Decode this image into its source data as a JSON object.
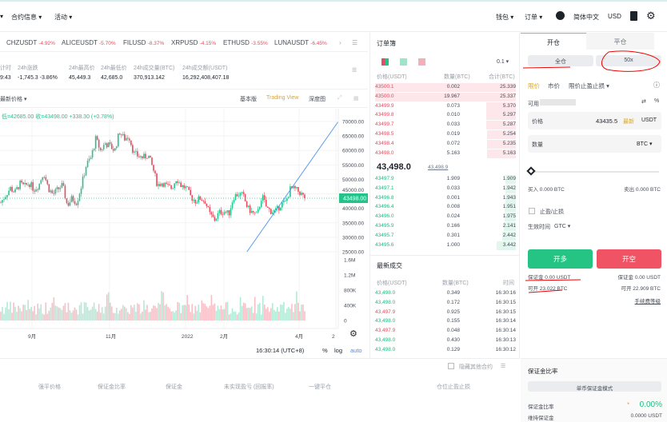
{
  "nav": {
    "left": [
      {
        "label": "合约信息 ▾"
      },
      {
        "label": "活动 ▾"
      }
    ],
    "wallet": "钱包 ▾",
    "orders": "订单 ▾",
    "language": "简体中文",
    "currency": "USD"
  },
  "ticker": [
    {
      "symbol": "CHZUSDT",
      "change": "-4.92%"
    },
    {
      "symbol": "ALICEUSDT",
      "change": "-5.70%"
    },
    {
      "symbol": "FILUSD",
      "change": "-8.37%"
    },
    {
      "symbol": "XRPUSD",
      "change": "-4.15%"
    },
    {
      "symbol": "ETHUSD",
      "change": "-3.55%"
    },
    {
      "symbol": "LUNAUSDT",
      "change": "-6.45%"
    }
  ],
  "stats": [
    {
      "label": "计时",
      "value": "9:43"
    },
    {
      "label": "24h涨跌",
      "value": "-1,745.3 -3.86%"
    },
    {
      "label": "24h最高价",
      "value": "45,449.3"
    },
    {
      "label": "24h最低价",
      "value": "42,685.0"
    },
    {
      "label": "24h成交量(BTC)",
      "value": "370,913.142"
    },
    {
      "label": "24h成交额(USDT)",
      "value": "16,292,408,407.18"
    }
  ],
  "chart_toolbar": {
    "price_type": "最新价格 ▾",
    "basic": "基本版",
    "tradingview": "Trading View",
    "depth": "深度图"
  },
  "chart": {
    "ohlc_text": "低=42685.00  收=43498.00  +338.30 (+0.78%)",
    "last_price_label": "43498.00",
    "price_ticks": [
      "70000.00",
      "65000.00",
      "60000.00",
      "55000.00",
      "50000.00",
      "45000.00",
      "40000.00",
      "35000.00",
      "30000.00",
      "25000.00"
    ],
    "volume_ticks": [
      "1.6M",
      "1.2M",
      "800K",
      "400K",
      "0"
    ],
    "time_ticks": [
      "9月",
      "11月",
      "2022",
      "2月",
      "4月",
      "2"
    ],
    "clock": "16:30:14 (UTC+8)",
    "pct": "%",
    "log": "log",
    "auto": "auto",
    "closes": [
      42000,
      44500,
      47000,
      45500,
      48500,
      47500,
      48800,
      46500,
      48000,
      52500,
      47000,
      44800,
      46500,
      48000,
      41000,
      43500,
      42000,
      48000,
      55000,
      57500,
      64000,
      60000,
      62500,
      61500,
      60000,
      66500,
      64000,
      65000,
      59000,
      58000,
      57500,
      58500,
      54000,
      48000,
      49000,
      47500,
      47000,
      50500,
      47800,
      47000,
      44000,
      42500,
      43500,
      42500,
      38000,
      36000,
      38500,
      39000,
      38000,
      44000,
      45000,
      44500,
      40000,
      38500,
      37500,
      44500,
      40000,
      39000,
      39000,
      41500,
      42000,
      46800,
      46500,
      45500,
      43498
    ],
    "trend_line": [
      {
        "date_index": 0.73,
        "price": 25000
      },
      {
        "date_index": 1.0,
        "price": 70000
      }
    ],
    "colors": {
      "up": "#26c28c",
      "down": "#e84b5d",
      "trendline": "#5a9cf0"
    }
  },
  "orderbook": {
    "title": "订单簿",
    "precision": "0.1 ▾",
    "headers": [
      "价格(USDT)",
      "数量(BTC)",
      "合计(BTC)"
    ],
    "asks": [
      [
        "43500.1",
        "0.002",
        "25.339"
      ],
      [
        "43500.0",
        "19.967",
        "25.337"
      ],
      [
        "43499.9",
        "0.073",
        "5.370"
      ],
      [
        "43499.8",
        "0.010",
        "5.297"
      ],
      [
        "43499.7",
        "0.033",
        "5.287"
      ],
      [
        "43498.5",
        "0.019",
        "5.254"
      ],
      [
        "43498.4",
        "0.072",
        "5.235"
      ],
      [
        "43498.0",
        "5.163",
        "5.163"
      ]
    ],
    "last_price": "43,498.0",
    "mark_price": "43,498.9",
    "bids": [
      [
        "43497.9",
        "1.909",
        "1.909"
      ],
      [
        "43497.1",
        "0.033",
        "1.942"
      ],
      [
        "43496.8",
        "0.001",
        "1.943"
      ],
      [
        "43496.4",
        "0.008",
        "1.951"
      ],
      [
        "43496.0",
        "0.024",
        "1.975"
      ],
      [
        "43495.9",
        "0.166",
        "2.141"
      ],
      [
        "43495.7",
        "0.301",
        "2.442"
      ],
      [
        "43495.6",
        "1.000",
        "3.442"
      ]
    ]
  },
  "trades": {
    "title": "最新成交",
    "headers": [
      "价格(USDT)",
      "数量(BTC)",
      "时间"
    ],
    "rows": [
      [
        "43,498.0",
        "0.349",
        "16:30:16",
        "buy"
      ],
      [
        "43,498.0",
        "0.172",
        "16:30:15",
        "buy"
      ],
      [
        "43,497.9",
        "0.925",
        "16:30:15",
        "sell"
      ],
      [
        "43,498.0",
        "0.155",
        "16:30:14",
        "buy"
      ],
      [
        "43,497.9",
        "0.048",
        "16:30:14",
        "sell"
      ],
      [
        "43,498.0",
        "0.430",
        "16:30:13",
        "buy"
      ],
      [
        "43,498.0",
        "0.129",
        "16:30:12",
        "buy"
      ]
    ]
  },
  "order_form": {
    "tab_open": "开仓",
    "tab_close": "平仓",
    "margin_mode": "全仓",
    "leverage": "50x",
    "types": [
      "限价",
      "市价",
      "限价止盈止损 ▾"
    ],
    "available_label": "可用",
    "price_label": "价格",
    "price_value": "43435.5",
    "latest": "最新",
    "price_unit": "USDT",
    "qty_label": "数量",
    "qty_unit": "BTC ▾",
    "slider_value": 0,
    "buy_qty": "买入 0.000 BTC",
    "sell_qty": "卖出 0.000 BTC",
    "tpsl": "止盈/止损",
    "tif_label": "生效时间",
    "tif_value": "GTC ▾",
    "long_button": "开多",
    "short_button": "开空",
    "long_margin": "保证金 0.00 USDT",
    "short_margin": "保证金 0.00 USDT",
    "long_max": "可开 23.022 BTC",
    "short_max": "可开 22.909 BTC",
    "fee_level": "手续费等级"
  },
  "positions": {
    "hide_other": "隐藏其他合约",
    "headers": [
      "强平价格",
      "保证金比率",
      "保证金",
      "未实现盈亏 (回报率)",
      "一键平仓",
      "仓位止盈止损"
    ]
  },
  "margin_ratio": {
    "title": "保证金比率",
    "mode": "单币保证金模式",
    "ratio_label": "保证金比率",
    "ratio_value": "0.00%",
    "maint_label": "维持保证金",
    "maint_value": "0.0000 USDT"
  }
}
